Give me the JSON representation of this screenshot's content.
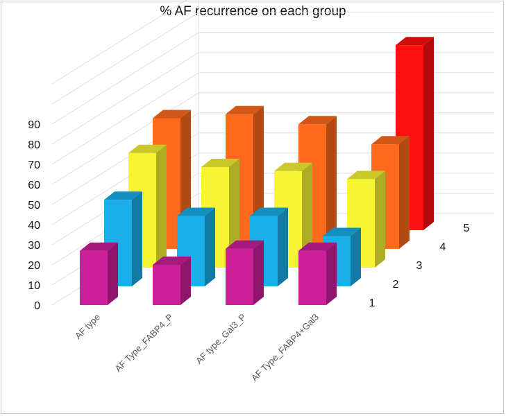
{
  "chart_data": {
    "type": "bar",
    "title": "% AF recurrence on each group",
    "categories": [
      "AF type",
      "AF Type_FABP4_P",
      "AF type_Gal3_P",
      "AF Type_FABP4+Gal3"
    ],
    "depth_labels": [
      "1",
      "2",
      "3",
      "4",
      "5"
    ],
    "yticks": [
      "0",
      "10",
      "20",
      "30",
      "40",
      "50",
      "60",
      "70",
      "80",
      "90"
    ],
    "ylim": [
      0,
      90
    ],
    "series": [
      {
        "name": "1",
        "values": [
          27,
          20,
          28,
          27
        ],
        "color": "#cc1f9a"
      },
      {
        "name": "2",
        "values": [
          43,
          35,
          35,
          25
        ],
        "color": "#1aaeea"
      },
      {
        "name": "3",
        "values": [
          57,
          50,
          48,
          44
        ],
        "color": "#f7f532"
      },
      {
        "name": "4",
        "values": [
          65,
          67,
          62,
          52
        ],
        "color": "#ff6a1c"
      },
      {
        "name": "5",
        "values": [
          0,
          0,
          0,
          92
        ],
        "color": "#ff1010"
      }
    ],
    "grid": true,
    "xlabel": "",
    "ylabel": ""
  }
}
